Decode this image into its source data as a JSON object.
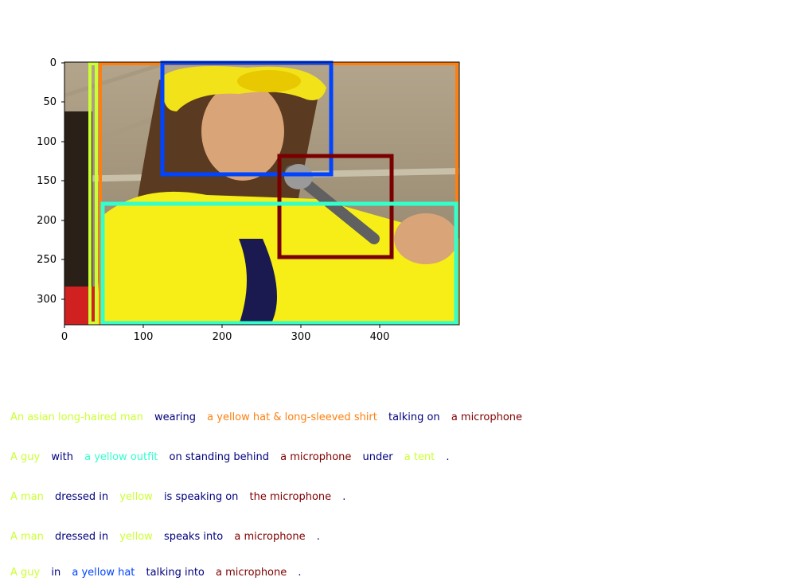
{
  "axes": {
    "x_ticks": [
      "0",
      "100",
      "200",
      "300",
      "400"
    ],
    "y_ticks": [
      "0",
      "50",
      "100",
      "150",
      "200",
      "250",
      "300"
    ]
  },
  "image": {
    "description_icon": "photo-man-yellow-hat-microphone"
  },
  "boxes": [
    {
      "color": "#ccff33",
      "label": "tent"
    },
    {
      "color": "#ff7f0e",
      "label": "hat and shirt"
    },
    {
      "color": "#0044ff",
      "label": "hat"
    },
    {
      "color": "#7a0000",
      "label": "microphone"
    },
    {
      "color": "#33ffcc",
      "label": "outfit"
    }
  ],
  "colors": {
    "yellow_green": "#ccff33",
    "orange": "#ff7f0e",
    "navy": "#00007f",
    "maroon": "#7f0000",
    "cyan": "#33ffcc",
    "blue": "#0044ff",
    "black": "#000000"
  },
  "captions": [
    {
      "segments": [
        {
          "text": "An asian long-haired man",
          "color": "#ccff33"
        },
        {
          "text": "wearing",
          "color": "#00007f"
        },
        {
          "text": "a yellow hat & long-sleeved shirt",
          "color": "#ff7f0e"
        },
        {
          "text": "talking on",
          "color": "#00007f"
        },
        {
          "text": "a microphone",
          "color": "#7f0000"
        }
      ]
    },
    {
      "segments": [
        {
          "text": "A guy",
          "color": "#ccff33"
        },
        {
          "text": "with",
          "color": "#00007f"
        },
        {
          "text": "a yellow outfit",
          "color": "#33ffcc"
        },
        {
          "text": "on standing behind",
          "color": "#00007f"
        },
        {
          "text": "a microphone",
          "color": "#7f0000"
        },
        {
          "text": "under",
          "color": "#00007f"
        },
        {
          "text": "a tent",
          "color": "#ccff33"
        },
        {
          "text": ".",
          "color": "#00007f"
        }
      ]
    },
    {
      "segments": [
        {
          "text": "A man",
          "color": "#ccff33"
        },
        {
          "text": "dressed in",
          "color": "#00007f"
        },
        {
          "text": "yellow",
          "color": "#ccff33"
        },
        {
          "text": "is speaking on",
          "color": "#00007f"
        },
        {
          "text": "the microphone",
          "color": "#7f0000"
        },
        {
          "text": ".",
          "color": "#00007f"
        }
      ]
    },
    {
      "segments": [
        {
          "text": "A man",
          "color": "#ccff33"
        },
        {
          "text": "dressed in",
          "color": "#00007f"
        },
        {
          "text": "yellow",
          "color": "#ccff33"
        },
        {
          "text": "speaks into",
          "color": "#00007f"
        },
        {
          "text": "a microphone",
          "color": "#7f0000"
        },
        {
          "text": ".",
          "color": "#00007f"
        }
      ]
    },
    {
      "segments": [
        {
          "text": "A guy",
          "color": "#ccff33"
        },
        {
          "text": "in",
          "color": "#00007f"
        },
        {
          "text": "a yellow hat",
          "color": "#0044ff"
        },
        {
          "text": "talking into",
          "color": "#00007f"
        },
        {
          "text": "a microphone",
          "color": "#7f0000"
        },
        {
          "text": ".",
          "color": "#00007f"
        }
      ]
    }
  ]
}
